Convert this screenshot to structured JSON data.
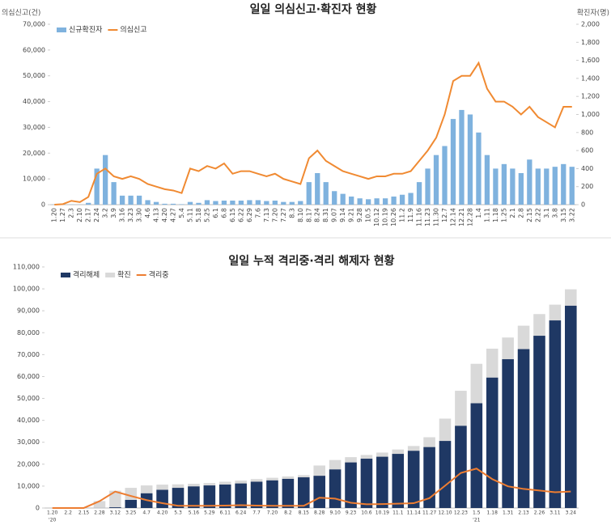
{
  "chart_data": [
    {
      "type": "bar_line",
      "title": "일일 의심신고·확진자 현황",
      "y_label": "의심신고(건)",
      "y2_label": "확진자(명)",
      "categories": [
        "1.20",
        "1.27",
        "2.3",
        "2.10",
        "2.17",
        "2.24",
        "3.2",
        "3.9",
        "3.16",
        "3.23",
        "3.30",
        "4.6",
        "4.13",
        "4.20",
        "4.27",
        "5.4",
        "5.11",
        "5.18",
        "5.25",
        "6.1",
        "6.8",
        "6.15",
        "6.22",
        "6.29",
        "7.6",
        "7.13",
        "7.20",
        "7.27",
        "8.3",
        "8.10",
        "8.17",
        "8.24",
        "8.31",
        "9.07",
        "9.14",
        "9.21",
        "9.28",
        "10.5",
        "10.12",
        "10.19",
        "10.26",
        "11.2",
        "11.9",
        "11.16",
        "11.23",
        "11.30",
        "12.7",
        "12.14",
        "12.21",
        "12.28",
        "1.4",
        "1.11",
        "1.18",
        "1.25",
        "2.1",
        "2.8",
        "2.15",
        "2.22",
        "3.1",
        "3.8",
        "3.15",
        "3.22"
      ],
      "series": [
        {
          "name": "신규확진자",
          "color": "#7fb2de",
          "kind": "bar",
          "axis": "y2",
          "values": [
            1,
            3,
            2,
            1,
            20,
            400,
            550,
            250,
            100,
            100,
            100,
            50,
            30,
            10,
            10,
            5,
            30,
            20,
            50,
            40,
            45,
            45,
            45,
            50,
            50,
            40,
            45,
            30,
            30,
            40,
            250,
            350,
            250,
            150,
            120,
            90,
            70,
            60,
            70,
            70,
            90,
            110,
            130,
            250,
            400,
            550,
            650,
            950,
            1050,
            1000,
            800,
            550,
            400,
            450,
            400,
            350,
            500,
            400,
            400,
            420,
            450,
            420
          ]
        },
        {
          "name": "의심신고",
          "color": "#f08a32",
          "kind": "line",
          "values": [
            0,
            200,
            1500,
            1000,
            3000,
            12000,
            14000,
            11000,
            10000,
            11000,
            10000,
            8000,
            7000,
            6000,
            5500,
            4500,
            14000,
            13000,
            15000,
            14000,
            16000,
            12000,
            13000,
            13000,
            12000,
            11000,
            12000,
            10000,
            9000,
            8000,
            18000,
            21000,
            17000,
            15000,
            13000,
            12000,
            11000,
            10000,
            11000,
            11000,
            12000,
            12000,
            13000,
            17000,
            21000,
            26000,
            35000,
            48000,
            50000,
            50000,
            55000,
            45000,
            40000,
            40000,
            38000,
            35000,
            38000,
            34000,
            32000,
            30000,
            38000,
            38000
          ]
        }
      ],
      "ylim": [
        0,
        70000
      ],
      "yticks": [
        0,
        {
          "value": 10000,
          "label": "10,000"
        },
        {
          "value": 20000,
          "label": "20,000"
        },
        {
          "value": 30000,
          "label": "30,000"
        },
        {
          "value": 40000,
          "label": "40,000"
        },
        {
          "value": 50000,
          "label": "50,000"
        },
        {
          "value": 60000,
          "label": "60,000"
        },
        {
          "value": 70000,
          "label": "70,000"
        }
      ],
      "y2lim": [
        0,
        2000
      ],
      "y2ticks": [
        0,
        200,
        400,
        600,
        800,
        {
          "value": 1000,
          "label": "1,000"
        },
        {
          "value": 1200,
          "label": "1,200"
        },
        {
          "value": 1400,
          "label": "1,400"
        },
        {
          "value": 1600,
          "label": "1,600"
        },
        {
          "value": 1800,
          "label": "1,800"
        },
        {
          "value": 2000,
          "label": "2,000"
        }
      ],
      "grid": false,
      "x_label_rotation": true
    },
    {
      "type": "bar_line",
      "title": "일일 누적 격리중·격리 해제자 현황",
      "categories": [
        "1.20",
        "2.2",
        "2.15",
        "2.28",
        "3.12",
        "3.25",
        "4.7",
        "4.20",
        "5.3",
        "5.16",
        "5.29",
        "6.11",
        "6.24",
        "7.7",
        "7.20",
        "8.2",
        "8.15",
        "8.28",
        "9.10",
        "9.23",
        "10.6",
        "10.19",
        "11.1",
        "11.14",
        "11.27",
        "12.10",
        "12.23",
        "1.5",
        "1.18",
        "1.31",
        "2.13",
        "2.26",
        "3.11",
        "3.24"
      ],
      "year_labels": [
        {
          "index": 0,
          "label": "'20"
        },
        {
          "index": 27,
          "label": "'21"
        }
      ],
      "series": [
        {
          "name": "격리해제",
          "color": "#1f3864",
          "kind": "bar",
          "values": [
            0,
            0,
            9,
            30,
            330,
            3700,
            6700,
            8300,
            9200,
            9850,
            10300,
            10700,
            11200,
            12000,
            12600,
            13300,
            14000,
            14700,
            17600,
            20800,
            22500,
            23400,
            24700,
            26100,
            27800,
            30600,
            37500,
            47800,
            59500,
            67900,
            72500,
            78600,
            85600,
            92300
          ]
        },
        {
          "name": "확진",
          "color": "#d9d9d9",
          "kind": "bar",
          "values": [
            1,
            15,
            28,
            3150,
            7900,
            9200,
            10300,
            10670,
            10800,
            11050,
            11400,
            12000,
            12500,
            13200,
            13800,
            14400,
            15000,
            19400,
            21900,
            23200,
            24200,
            25300,
            26700,
            28300,
            32300,
            40800,
            53500,
            65800,
            72700,
            77800,
            83200,
            88500,
            92800,
            99800
          ]
        },
        {
          "name": "격리중",
          "color": "#ed7d31",
          "kind": "line",
          "values": [
            1,
            15,
            19,
            3100,
            7500,
            5500,
            3600,
            2200,
            1000,
            1000,
            1000,
            1100,
            1300,
            1100,
            1000,
            1000,
            1000,
            4700,
            4300,
            2400,
            1700,
            1800,
            2000,
            2200,
            4500,
            10200,
            16000,
            18000,
            13200,
            9900,
            8700,
            8000,
            7200,
            7500
          ]
        }
      ],
      "ylim": [
        0,
        110000
      ],
      "yticks": [
        0,
        {
          "value": 10000,
          "label": "10,000"
        },
        {
          "value": 20000,
          "label": "20,000"
        },
        {
          "value": 30000,
          "label": "30,000"
        },
        {
          "value": 40000,
          "label": "40,000"
        },
        {
          "value": 50000,
          "label": "50,000"
        },
        {
          "value": 60000,
          "label": "60,000"
        },
        {
          "value": 70000,
          "label": "70,000"
        },
        {
          "value": 80000,
          "label": "80,000"
        },
        {
          "value": 90000,
          "label": "90,000"
        },
        {
          "value": 100000,
          "label": "100,000"
        },
        {
          "value": 110000,
          "label": "110,000"
        }
      ],
      "grid": false,
      "x_label_rotation": false
    }
  ]
}
